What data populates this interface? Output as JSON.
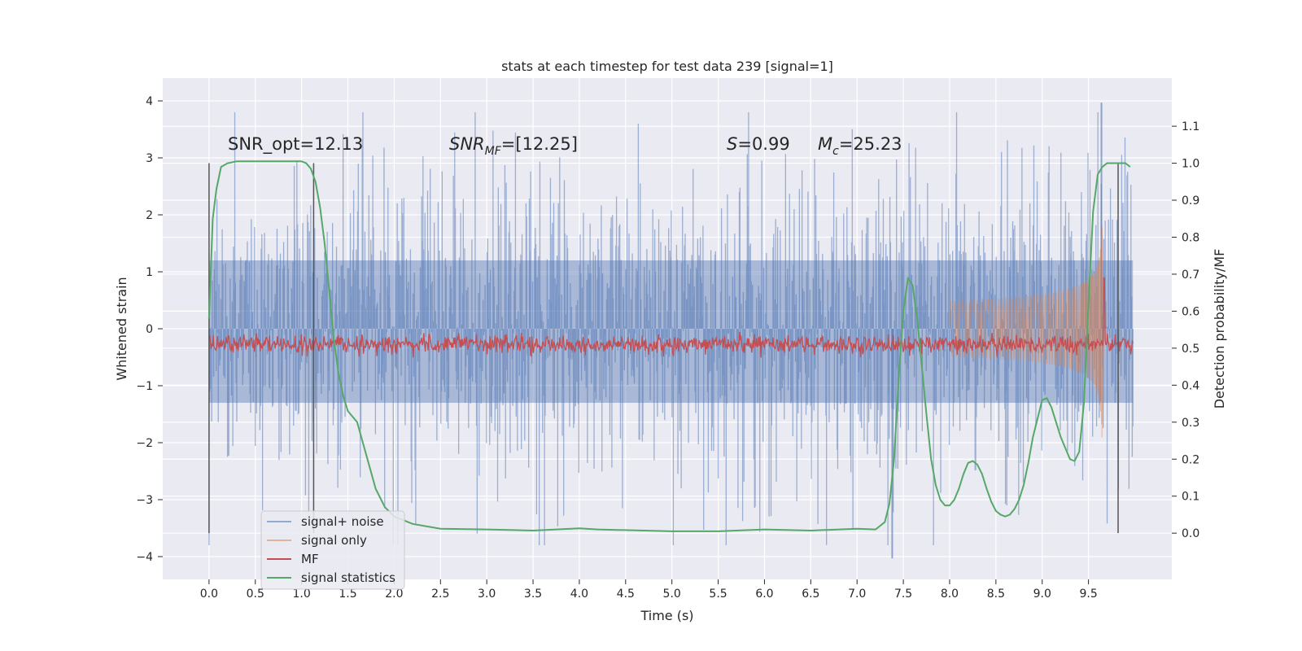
{
  "chart_data": {
    "type": "line",
    "title": "stats at each timestep for test data 239 [signal=1]",
    "xlabel": "Time (s)",
    "ylabel_left": "Whitened strain",
    "ylabel_right": "Detection probability/MF",
    "x_range": [
      -0.5,
      10.4
    ],
    "y_left_range": [
      -4.4,
      4.4
    ],
    "y_right_range": [
      -0.125,
      1.23
    ],
    "x_ticks": [
      "0.0",
      "0.5",
      "1.0",
      "1.5",
      "2.0",
      "2.5",
      "3.0",
      "3.5",
      "4.0",
      "4.5",
      "5.0",
      "5.5",
      "6.0",
      "6.5",
      "7.0",
      "7.5",
      "8.0",
      "8.5",
      "9.0",
      "9.5"
    ],
    "y_left_ticks": [
      "4",
      "3",
      "2",
      "1",
      "0",
      "−1",
      "−2",
      "−3",
      "−4"
    ],
    "y_right_ticks": [
      "1.1",
      "1.0",
      "0.9",
      "0.8",
      "0.7",
      "0.6",
      "0.5",
      "0.4",
      "0.3",
      "0.2",
      "0.1",
      "0.0"
    ],
    "grid": true,
    "legend_position": "lower-left",
    "annotations": {
      "snr_opt": "SNR_opt=12.13",
      "snr_mf_prefix": "SNR",
      "snr_mf_sub": "MF",
      "snr_mf_value": "=[12.25]",
      "s_prefix": "S",
      "s_value": "=0.99",
      "mc_prefix": "M",
      "mc_sub": "c",
      "mc_value": "=25.23"
    },
    "vertical_markers": [
      {
        "x": 0.0,
        "y_right": [
          0.0,
          1.0
        ]
      },
      {
        "x": 1.13,
        "y_right": [
          0.0,
          1.0
        ]
      },
      {
        "x": 9.82,
        "y_right": [
          0.0,
          1.0
        ]
      }
    ],
    "series": [
      {
        "name": "signal+ noise",
        "color": "#4c72b0",
        "axis": "left",
        "kind": "noise",
        "envelope": [
          -2.0,
          2.0
        ],
        "extremes": [
          3.97,
          -4.03
        ]
      },
      {
        "name": "signal only",
        "color": "#dd8452",
        "axis": "left",
        "kind": "chirp",
        "merger_time": 9.65,
        "peak_amplitude": 2.4
      },
      {
        "name": "MF",
        "color": "#c44e52",
        "axis": "right",
        "kind": "mf",
        "level": 0.51,
        "peak": {
          "x": 9.67,
          "y": 0.69
        }
      },
      {
        "name": "signal statistics",
        "color": "#55a868",
        "axis": "right",
        "x": [
          0.0,
          0.04,
          0.08,
          0.13,
          0.2,
          0.3,
          0.5,
          0.7,
          0.9,
          1.0,
          1.05,
          1.1,
          1.15,
          1.2,
          1.25,
          1.3,
          1.35,
          1.4,
          1.45,
          1.5,
          1.6,
          1.7,
          1.8,
          1.9,
          2.0,
          2.2,
          2.5,
          3.0,
          3.5,
          4.0,
          4.2,
          5.0,
          5.5,
          6.0,
          6.5,
          7.0,
          7.2,
          7.3,
          7.35,
          7.4,
          7.45,
          7.5,
          7.55,
          7.6,
          7.65,
          7.7,
          7.75,
          7.8,
          7.85,
          7.9,
          7.95,
          8.0,
          8.05,
          8.1,
          8.15,
          8.2,
          8.25,
          8.3,
          8.35,
          8.4,
          8.45,
          8.5,
          8.55,
          8.6,
          8.65,
          8.7,
          8.75,
          8.8,
          8.85,
          8.9,
          8.95,
          9.0,
          9.05,
          9.1,
          9.15,
          9.2,
          9.25,
          9.3,
          9.35,
          9.4,
          9.45,
          9.5,
          9.55,
          9.6,
          9.65,
          9.7,
          9.75,
          9.8,
          9.85,
          9.9,
          9.95
        ],
        "y": [
          0.58,
          0.85,
          0.93,
          0.99,
          1.0,
          1.005,
          1.005,
          1.005,
          1.005,
          1.005,
          1.0,
          0.985,
          0.95,
          0.88,
          0.78,
          0.65,
          0.52,
          0.43,
          0.37,
          0.33,
          0.3,
          0.21,
          0.12,
          0.07,
          0.045,
          0.025,
          0.012,
          0.01,
          0.007,
          0.013,
          0.01,
          0.005,
          0.005,
          0.01,
          0.007,
          0.012,
          0.01,
          0.03,
          0.08,
          0.2,
          0.42,
          0.6,
          0.69,
          0.67,
          0.58,
          0.45,
          0.32,
          0.2,
          0.13,
          0.09,
          0.075,
          0.075,
          0.09,
          0.12,
          0.16,
          0.19,
          0.195,
          0.185,
          0.16,
          0.12,
          0.085,
          0.06,
          0.05,
          0.045,
          0.05,
          0.065,
          0.09,
          0.13,
          0.19,
          0.26,
          0.31,
          0.36,
          0.365,
          0.34,
          0.3,
          0.26,
          0.23,
          0.2,
          0.195,
          0.22,
          0.35,
          0.62,
          0.87,
          0.97,
          0.99,
          1.0,
          1.0,
          1.0,
          1.0,
          1.0,
          0.99
        ]
      }
    ]
  }
}
